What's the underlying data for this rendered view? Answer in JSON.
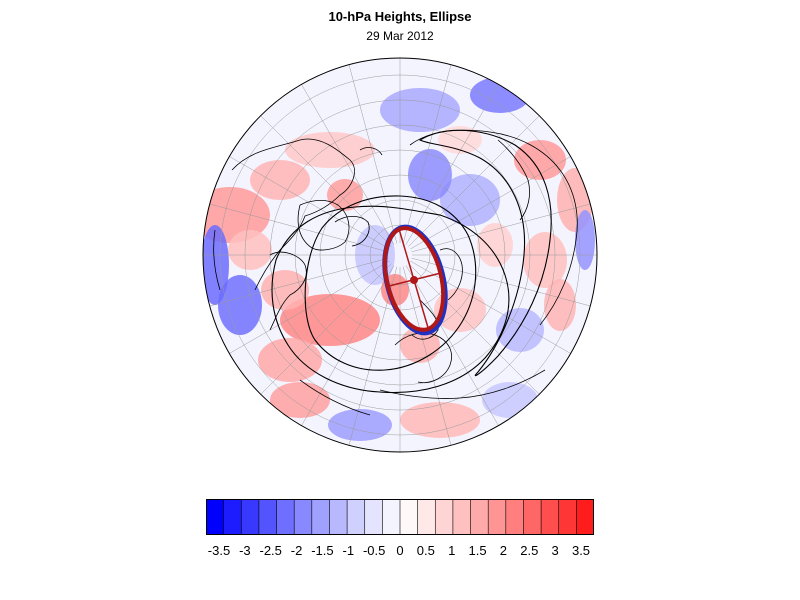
{
  "title": "10-hPa Heights, Ellipse",
  "subtitle": "29 Mar 2012",
  "map": {
    "projection": "north polar stereographic",
    "field": "10-hPa height anomaly (shaded)",
    "contours": "10-hPa height contours (black)",
    "ellipse_color_outer": "#2030c0",
    "ellipse_color_inner": "#b01818"
  },
  "colorbar": {
    "labels": [
      "-3.5",
      "-3",
      "-2.5",
      "-2",
      "-1.5",
      "-1",
      "-0.5",
      "0",
      "0.5",
      "1",
      "1.5",
      "2",
      "2.5",
      "3",
      "3.5"
    ],
    "colors": [
      "#0000ff",
      "#1c1cff",
      "#3838ff",
      "#5454ff",
      "#6e6eff",
      "#8888ff",
      "#a0a0ff",
      "#b8b8ff",
      "#d0d0ff",
      "#e4e4ff",
      "#f4f4ff",
      "#fff8f8",
      "#ffe8e8",
      "#ffd4d4",
      "#ffc0c0",
      "#ffaaaa",
      "#ff9494",
      "#ff7e7e",
      "#ff6666",
      "#ff4e4e",
      "#ff3636",
      "#ff1c1c"
    ]
  }
}
